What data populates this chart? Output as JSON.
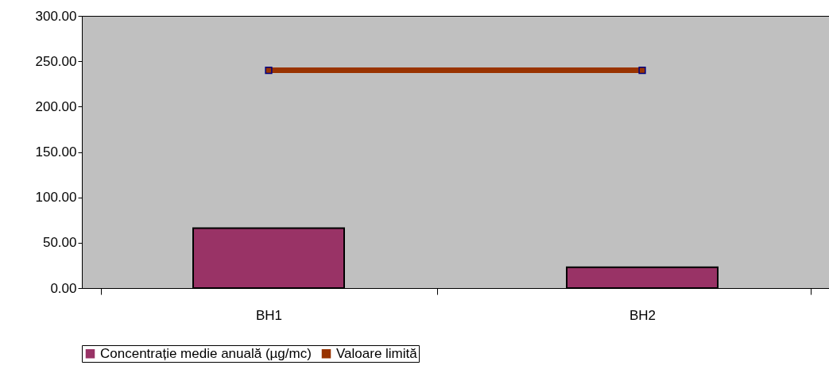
{
  "chart_data": {
    "type": "bar",
    "categories": [
      "BH1",
      "BH2"
    ],
    "series": [
      {
        "name": "Concentrație medie anuală (µg/mc)",
        "color": "#993366",
        "values": [
          66,
          23
        ]
      },
      {
        "name": "Valoare limită",
        "type": "line",
        "color": "#993300",
        "marker": "square",
        "values": [
          240,
          240
        ]
      }
    ],
    "ylim": [
      0,
      300
    ],
    "yticks": [
      {
        "value": 0,
        "label": "0.00"
      },
      {
        "value": 50,
        "label": "50.00"
      },
      {
        "value": 100,
        "label": "100.00"
      },
      {
        "value": 150,
        "label": "150.00"
      },
      {
        "value": 200,
        "label": "200.00"
      },
      {
        "value": 250,
        "label": "250.00"
      },
      {
        "value": 300,
        "label": "300.00"
      }
    ],
    "grid": false,
    "legend": "bottom"
  }
}
